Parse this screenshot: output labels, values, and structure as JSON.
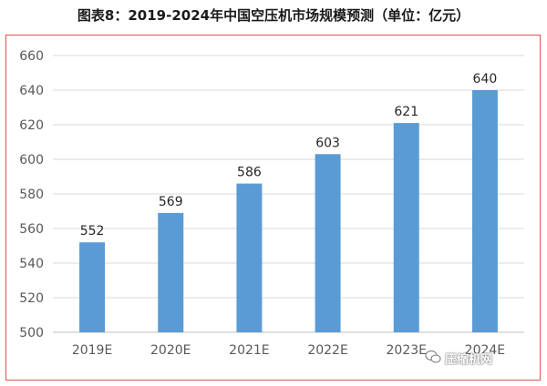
{
  "title": "图表8：2019-2024年中国空压机市场规模预测（单位：亿元）",
  "watermark": "压缩机网",
  "colors": {
    "bar": "#5b9bd5",
    "frame": "#d9564a",
    "grid": "#d9d9d9",
    "text": "#595959"
  },
  "chart_data": {
    "type": "bar",
    "categories": [
      "2019E",
      "2020E",
      "2021E",
      "2022E",
      "2023E",
      "2024E"
    ],
    "values": [
      552,
      569,
      586,
      603,
      621,
      640
    ],
    "ylim": [
      500,
      660
    ],
    "yticks": [
      500,
      520,
      540,
      560,
      580,
      600,
      620,
      640,
      660
    ],
    "grid": true,
    "data_labels": true
  }
}
